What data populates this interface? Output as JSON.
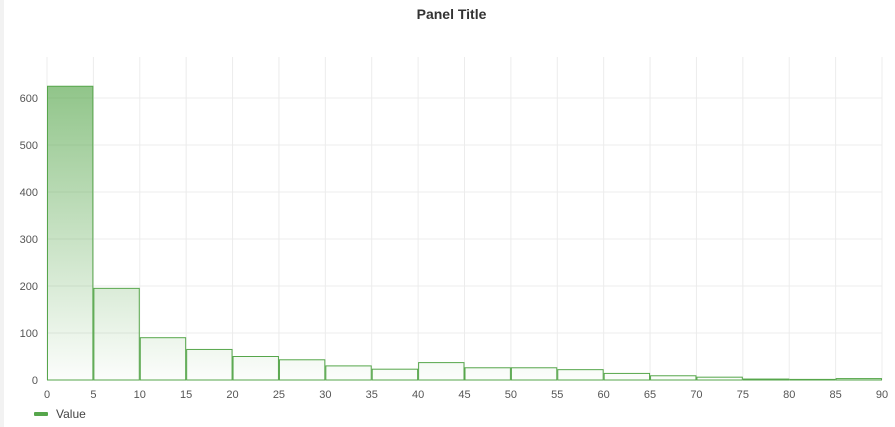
{
  "panel": {
    "title": "Panel Title"
  },
  "chart_data": {
    "type": "bar",
    "title": "Panel Title",
    "x_bins": [
      0,
      5,
      10,
      15,
      20,
      25,
      30,
      35,
      40,
      45,
      50,
      55,
      60,
      65,
      70,
      75,
      80,
      85,
      90
    ],
    "series": [
      {
        "name": "Value",
        "color": "#56a64b",
        "values": [
          625,
          195,
          90,
          65,
          50,
          43,
          30,
          23,
          37,
          26,
          26,
          22,
          14,
          9,
          6,
          2,
          0,
          3
        ]
      }
    ],
    "x_ticks": [
      "0",
      "5",
      "10",
      "15",
      "20",
      "25",
      "30",
      "35",
      "40",
      "45",
      "50",
      "55",
      "60",
      "65",
      "70",
      "75",
      "80",
      "85",
      "90"
    ],
    "y_ticks": [
      "0",
      "100",
      "200",
      "300",
      "400",
      "500",
      "600"
    ],
    "xlim": [
      0,
      90
    ],
    "ylim": [
      0,
      700
    ],
    "grid": true,
    "legend": "bottom-left"
  }
}
